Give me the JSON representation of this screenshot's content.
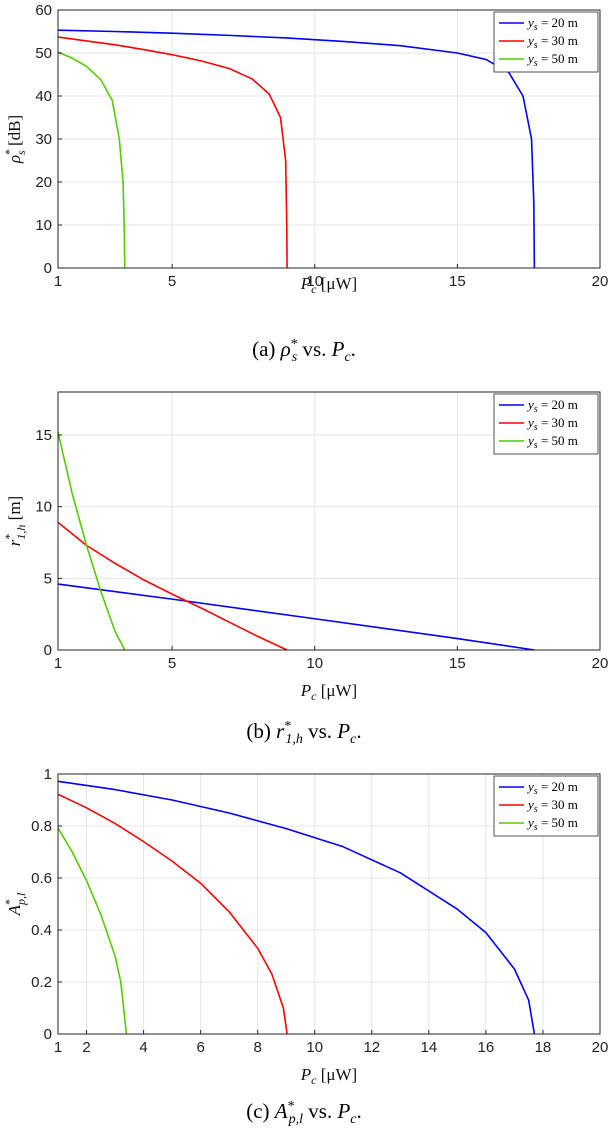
{
  "chart_data": [
    {
      "id": "a",
      "type": "line",
      "caption": "(a) ρ*s vs. Pc.",
      "caption_parts": {
        "prefix": "(a) ",
        "sym": "ρ",
        "sup": "*",
        "sub": "s",
        "mid": " vs. ",
        "p": "P",
        "psub": "c",
        "end": "."
      },
      "xlabel": "Pc [μW]",
      "xlabel_parts": {
        "sym": "P",
        "sub": "c",
        "unit": " [μW]"
      },
      "ylabel": "ρ*s [dB]",
      "ylabel_parts": {
        "sym": "ρ",
        "sup": "*",
        "sub": "s",
        "unit": " [dB]"
      },
      "xlim": [
        1,
        20
      ],
      "ylim": [
        0,
        60
      ],
      "xticks": [
        1,
        5,
        10,
        15,
        20
      ],
      "yticks": [
        0,
        10,
        20,
        30,
        40,
        50,
        60
      ],
      "grid": true,
      "legend_position": "top-right",
      "series": [
        {
          "name": "ys = 20 m",
          "label_parts": {
            "sym": "y",
            "sub": "s",
            "val": " = 20 m"
          },
          "color": "#0000ff",
          "points": [
            [
              1,
              55.3
            ],
            [
              3,
              55
            ],
            [
              5,
              54.6
            ],
            [
              7,
              54.1
            ],
            [
              9,
              53.5
            ],
            [
              11,
              52.7
            ],
            [
              13,
              51.7
            ],
            [
              15,
              50
            ],
            [
              16,
              48.5
            ],
            [
              16.8,
              45.5
            ],
            [
              17.3,
              40
            ],
            [
              17.6,
              30
            ],
            [
              17.68,
              15
            ],
            [
              17.7,
              0
            ]
          ]
        },
        {
          "name": "ys = 30 m",
          "label_parts": {
            "sym": "y",
            "sub": "s",
            "val": " = 30 m"
          },
          "color": "#ff0000",
          "points": [
            [
              1,
              53.7
            ],
            [
              2,
              52.8
            ],
            [
              3,
              51.9
            ],
            [
              4,
              50.8
            ],
            [
              5,
              49.6
            ],
            [
              6,
              48.2
            ],
            [
              7,
              46.4
            ],
            [
              7.8,
              44
            ],
            [
              8.4,
              40.5
            ],
            [
              8.8,
              35
            ],
            [
              8.98,
              25
            ],
            [
              9.02,
              10
            ],
            [
              9.03,
              0
            ]
          ]
        },
        {
          "name": "ys = 50 m",
          "label_parts": {
            "sym": "y",
            "sub": "s",
            "val": " = 50 m"
          },
          "color": "#55cc00",
          "points": [
            [
              1,
              50.2
            ],
            [
              1.5,
              48.8
            ],
            [
              2,
              46.9
            ],
            [
              2.5,
              43.8
            ],
            [
              2.9,
              39
            ],
            [
              3.15,
              30
            ],
            [
              3.28,
              20
            ],
            [
              3.32,
              10
            ],
            [
              3.34,
              0
            ]
          ]
        }
      ]
    },
    {
      "id": "b",
      "type": "line",
      "caption": "(b) r*1,h vs. Pc.",
      "caption_parts": {
        "prefix": "(b) ",
        "sym": "r",
        "sup": "*",
        "sub": "1,h",
        "mid": " vs. ",
        "p": "P",
        "psub": "c",
        "end": "."
      },
      "xlabel": "Pc [μW]",
      "xlabel_parts": {
        "sym": "P",
        "sub": "c",
        "unit": " [μW]"
      },
      "ylabel": "r*1,h [m]",
      "ylabel_parts": {
        "sym": "r",
        "sup": "*",
        "sub": "1,h",
        "unit": " [m]"
      },
      "xlim": [
        1,
        20
      ],
      "ylim": [
        0,
        18
      ],
      "xticks": [
        1,
        5,
        10,
        15,
        20
      ],
      "yticks": [
        0,
        5,
        10,
        15
      ],
      "grid": true,
      "legend_position": "top-right",
      "series": [
        {
          "name": "ys = 20 m",
          "label_parts": {
            "sym": "y",
            "sub": "s",
            "val": " = 20 m"
          },
          "color": "#0000ff",
          "points": [
            [
              1,
              4.6
            ],
            [
              5,
              3.55
            ],
            [
              10,
              2.18
            ],
            [
              15,
              0.8
            ],
            [
              17.7,
              0
            ]
          ]
        },
        {
          "name": "ys = 30 m",
          "label_parts": {
            "sym": "y",
            "sub": "s",
            "val": " = 30 m"
          },
          "color": "#ff0000",
          "points": [
            [
              1,
              8.9
            ],
            [
              2,
              7.3
            ],
            [
              3,
              6.05
            ],
            [
              4,
              4.9
            ],
            [
              5,
              3.9
            ],
            [
              6,
              2.95
            ],
            [
              7,
              1.95
            ],
            [
              8,
              0.95
            ],
            [
              9.03,
              0
            ]
          ]
        },
        {
          "name": "ys = 50 m",
          "label_parts": {
            "sym": "y",
            "sub": "s",
            "val": " = 50 m"
          },
          "color": "#55cc00",
          "points": [
            [
              1,
              15.2
            ],
            [
              1.5,
              10.9
            ],
            [
              2,
              7.3
            ],
            [
              2.5,
              4.1
            ],
            [
              3,
              1.3
            ],
            [
              3.34,
              0
            ]
          ]
        }
      ]
    },
    {
      "id": "c",
      "type": "line",
      "caption": "(c) A*p,l vs. Pc.",
      "caption_parts": {
        "prefix": "(c) ",
        "sym": "A",
        "sup": "*",
        "sub": "p,l",
        "mid": " vs. ",
        "p": "P",
        "psub": "c",
        "end": "."
      },
      "xlabel": "Pc [μW]",
      "xlabel_parts": {
        "sym": "P",
        "sub": "c",
        "unit": " [μW]"
      },
      "ylabel": "A*p,l",
      "ylabel_parts": {
        "sym": "A",
        "sup": "*",
        "sub": "p,l",
        "unit": ""
      },
      "xlim": [
        1,
        20
      ],
      "ylim": [
        0,
        1
      ],
      "xticks": [
        1,
        2,
        4,
        6,
        8,
        10,
        12,
        14,
        16,
        18,
        20
      ],
      "yticks": [
        0,
        0.2,
        0.4,
        0.6,
        0.8,
        1
      ],
      "grid": true,
      "legend_position": "top-right",
      "series": [
        {
          "name": "ys = 20 m",
          "label_parts": {
            "sym": "y",
            "sub": "s",
            "val": " = 20 m"
          },
          "color": "#0000ff",
          "points": [
            [
              1,
              0.972
            ],
            [
              3,
              0.94
            ],
            [
              5,
              0.9
            ],
            [
              7,
              0.85
            ],
            [
              9,
              0.79
            ],
            [
              11,
              0.72
            ],
            [
              13,
              0.62
            ],
            [
              15,
              0.48
            ],
            [
              16,
              0.39
            ],
            [
              17,
              0.25
            ],
            [
              17.5,
              0.13
            ],
            [
              17.7,
              0
            ]
          ]
        },
        {
          "name": "ys = 30 m",
          "label_parts": {
            "sym": "y",
            "sub": "s",
            "val": " = 30 m"
          },
          "color": "#ff0000",
          "points": [
            [
              1,
              0.922
            ],
            [
              2,
              0.87
            ],
            [
              3,
              0.81
            ],
            [
              4,
              0.74
            ],
            [
              5,
              0.665
            ],
            [
              6,
              0.58
            ],
            [
              7,
              0.47
            ],
            [
              8,
              0.33
            ],
            [
              8.5,
              0.23
            ],
            [
              8.9,
              0.1
            ],
            [
              9.03,
              0
            ]
          ]
        },
        {
          "name": "ys = 50 m",
          "label_parts": {
            "sym": "y",
            "sub": "s",
            "val": " = 50 m"
          },
          "color": "#55cc00",
          "points": [
            [
              1,
              0.792
            ],
            [
              1.5,
              0.7
            ],
            [
              2,
              0.59
            ],
            [
              2.5,
              0.46
            ],
            [
              3,
              0.3
            ],
            [
              3.2,
              0.2
            ],
            [
              3.4,
              0
            ]
          ]
        }
      ]
    }
  ]
}
